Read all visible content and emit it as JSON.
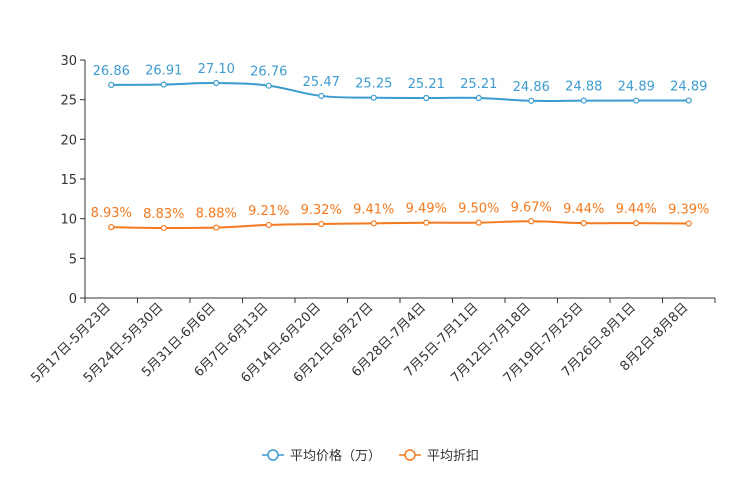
{
  "chart_data": {
    "type": "line",
    "title": "",
    "xlabel": "",
    "ylabel": "",
    "ylim": [
      0,
      30
    ],
    "yticks": [
      "0",
      "5",
      "10",
      "15",
      "20",
      "25",
      "30"
    ],
    "categories": [
      "5月17日-5月23日",
      "5月24日-5月30日",
      "5月31日-6月6日",
      "6月7日-6月13日",
      "6月14日-6月20日",
      "6月21日-6月27日",
      "6月28日-7月4日",
      "7月5日-7月11日",
      "7月12日-7月18日",
      "7月19日-7月25日",
      "7月26日-8月1日",
      "8月2日-8月8日"
    ],
    "series": [
      {
        "name": "平均价格（万）",
        "color": "#3c9cd0",
        "values": [
          26.86,
          26.91,
          27.1,
          26.76,
          25.47,
          25.25,
          25.21,
          25.21,
          24.86,
          24.88,
          24.89,
          24.89
        ],
        "labels": [
          "26.86",
          "26.91",
          "27.10",
          "26.76",
          "25.47",
          "25.25",
          "25.21",
          "25.21",
          "24.86",
          "24.88",
          "24.89",
          "24.89"
        ]
      },
      {
        "name": "平均折扣",
        "color": "#f47a1f",
        "values": [
          8.93,
          8.83,
          8.88,
          9.21,
          9.32,
          9.41,
          9.49,
          9.5,
          9.67,
          9.44,
          9.44,
          9.39
        ],
        "labels": [
          "8.93%",
          "8.83%",
          "8.88%",
          "9.21%",
          "9.32%",
          "9.41%",
          "9.49%",
          "9.50%",
          "9.67%",
          "9.44%",
          "9.44%",
          "9.39%"
        ]
      }
    ],
    "legend": "bottom-center",
    "grid": false
  }
}
